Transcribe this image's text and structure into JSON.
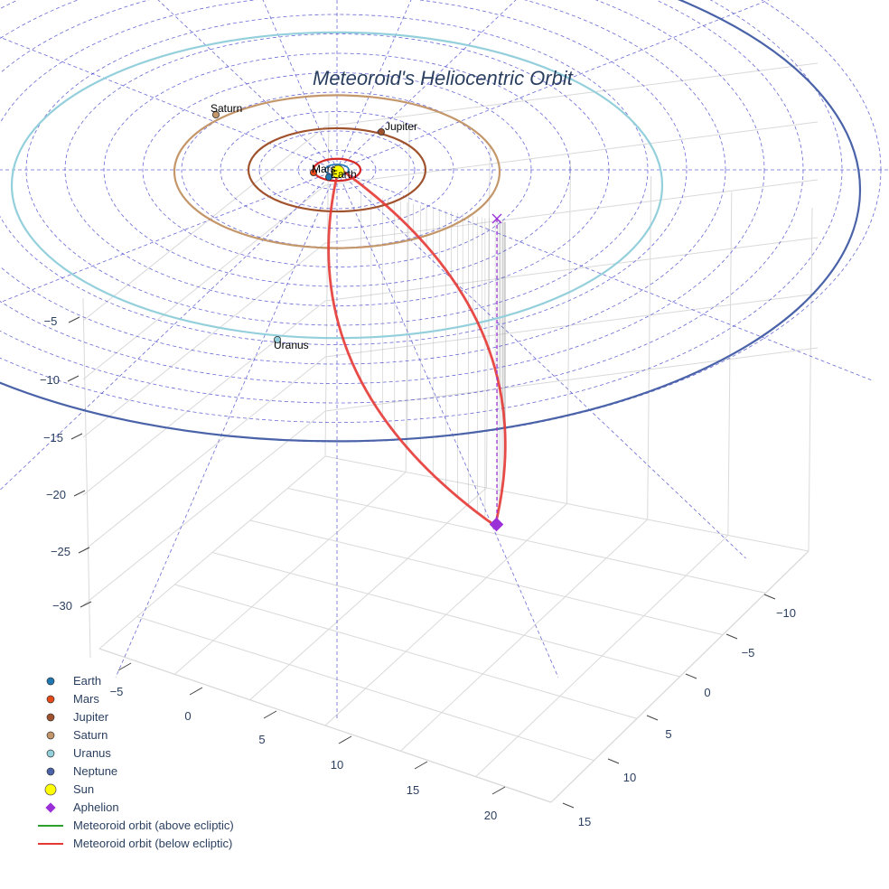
{
  "chart_data": {
    "type": "scatter3d",
    "title": "Meteoroid's Heliocentric Orbit",
    "axes": {
      "x": {
        "ticks": [
          -5,
          0,
          5,
          10,
          15,
          20
        ],
        "range": [
          -8,
          23
        ]
      },
      "y": {
        "ticks": [
          -10,
          -5,
          0,
          5,
          10,
          15
        ],
        "range": [
          -13,
          17
        ]
      },
      "z": {
        "ticks": [
          -5,
          -10,
          -15,
          -20,
          -25,
          -30
        ],
        "range": [
          -32,
          0
        ]
      }
    },
    "planet_orbits": [
      {
        "name": "Earth",
        "radius_au": 1.0,
        "color": "#1f77b4"
      },
      {
        "name": "Mars",
        "radius_au": 1.52,
        "color": "#d62728"
      },
      {
        "name": "Jupiter",
        "radius_au": 5.2,
        "color": "#a0522d"
      },
      {
        "name": "Saturn",
        "radius_au": 9.58,
        "color": "#c4976b"
      },
      {
        "name": "Uranus",
        "radius_au": 19.2,
        "color": "#94cfdc"
      },
      {
        "name": "Neptune",
        "radius_au": 30.1,
        "color": "#4a63a8"
      }
    ],
    "planets": [
      {
        "name": "Earth",
        "label": "Earth",
        "color": "#1f77b4"
      },
      {
        "name": "Mars",
        "label": "Mars",
        "color": "#e64a19"
      },
      {
        "name": "Jupiter",
        "label": "Jupiter",
        "color": "#a0522d"
      },
      {
        "name": "Saturn",
        "label": "Saturn",
        "color": "#c4976b"
      },
      {
        "name": "Uranus",
        "label": "Uranus",
        "color": "#94cfdc"
      }
    ],
    "aphelion": {
      "name": "Aphelion",
      "color": "#9b30d9"
    },
    "meteoroid_orbit": {
      "color_below": "#e53935",
      "color_above": "#2ca02c"
    },
    "legend": [
      {
        "label": "Earth",
        "marker": "dot",
        "color": "#1f77b4"
      },
      {
        "label": "Mars",
        "marker": "dot",
        "color": "#e64a19"
      },
      {
        "label": "Jupiter",
        "marker": "dot",
        "color": "#a0522d"
      },
      {
        "label": "Saturn",
        "marker": "dot",
        "color": "#c4976b"
      },
      {
        "label": "Uranus",
        "marker": "dot",
        "color": "#94cfdc"
      },
      {
        "label": "Neptune",
        "marker": "dot",
        "color": "#4a63a8"
      },
      {
        "label": "Sun",
        "marker": "sun",
        "color": "#ffff00"
      },
      {
        "label": "Aphelion",
        "marker": "diamond",
        "color": "#9b30d9"
      },
      {
        "label": "Meteoroid orbit (above ecliptic)",
        "marker": "line",
        "color": "#2ca02c"
      },
      {
        "label": "Meteoroid orbit (below ecliptic)",
        "marker": "line",
        "color": "#e53935"
      }
    ]
  }
}
